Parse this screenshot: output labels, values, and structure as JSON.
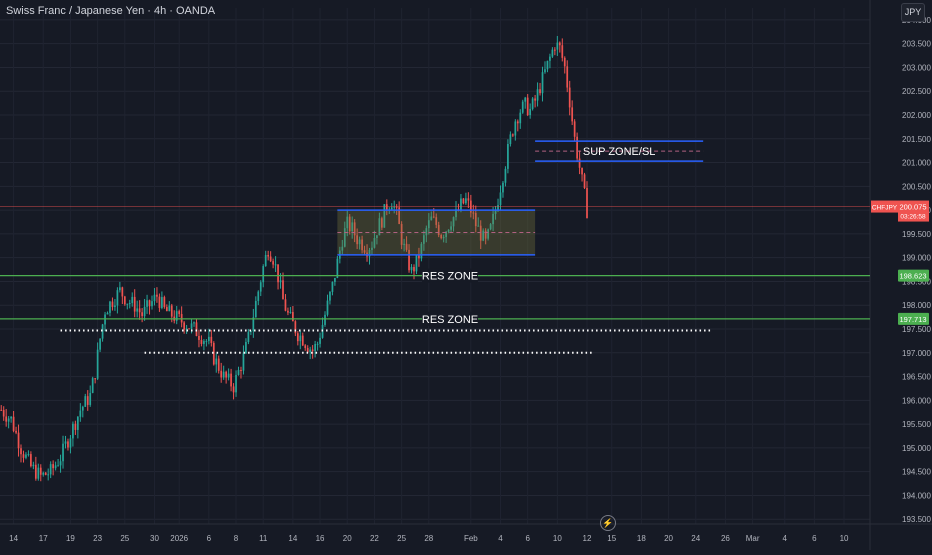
{
  "header": {
    "symbol_title": "Swiss Franc / Japanese Yen · 4h · OANDA",
    "currency_button": "JPY"
  },
  "colors": {
    "background": "#161a25",
    "up_candle": "#26a69a",
    "down_candle": "#ef5350",
    "green_line": "#4caf50",
    "zone_line": "#2962ff",
    "current_price_line": "#ef5350"
  },
  "icons": {
    "bottom_control": "lightning-bolt-icon"
  },
  "chart_data": {
    "type": "candlestick",
    "title": "Swiss Franc / Japanese Yen · 4h · OANDA",
    "xlabel": "",
    "ylabel": "",
    "ylim": [
      193.4,
      204.25
    ],
    "grid": true,
    "y_ticks": [
      "193.500",
      "194.000",
      "194.500",
      "195.000",
      "195.500",
      "196.000",
      "196.500",
      "197.000",
      "197.500",
      "198.000",
      "198.500",
      "199.000",
      "199.500",
      "200.000",
      "200.500",
      "201.000",
      "201.500",
      "202.000",
      "202.500",
      "203.000",
      "203.500",
      "204.000"
    ],
    "x_ticks": [
      "14",
      "17",
      "19",
      "23",
      "25",
      "30",
      "2026",
      "6",
      "8",
      "11",
      "14",
      "16",
      "20",
      "22",
      "25",
      "28",
      "Feb",
      "4",
      "6",
      "10",
      "12",
      "15",
      "18",
      "20",
      "24",
      "26",
      "Mar",
      "4",
      "6",
      "10"
    ],
    "close_path": [
      [
        0,
        195.8
      ],
      [
        4,
        195.6
      ],
      [
        8,
        195.0
      ],
      [
        12,
        194.6
      ],
      [
        16,
        194.4
      ],
      [
        20,
        194.5
      ],
      [
        24,
        194.8
      ],
      [
        28,
        195.3
      ],
      [
        32,
        195.8
      ],
      [
        36,
        196.1
      ],
      [
        38,
        196.6
      ],
      [
        40,
        197.3
      ],
      [
        42,
        197.9
      ],
      [
        45,
        198.1
      ],
      [
        48,
        198.3
      ],
      [
        51,
        198.1
      ],
      [
        54,
        198.0
      ],
      [
        57,
        197.8
      ],
      [
        60,
        198.0
      ],
      [
        63,
        198.2
      ],
      [
        66,
        197.9
      ],
      [
        69,
        197.8
      ],
      [
        72,
        197.7
      ],
      [
        75,
        197.6
      ],
      [
        78,
        197.5
      ],
      [
        80,
        197.4
      ],
      [
        82,
        197.3
      ],
      [
        84,
        197.2
      ],
      [
        86,
        196.9
      ],
      [
        88,
        196.7
      ],
      [
        90,
        196.5
      ],
      [
        92,
        196.4
      ],
      [
        94,
        196.3
      ],
      [
        96,
        196.6
      ],
      [
        98,
        196.9
      ],
      [
        100,
        197.3
      ],
      [
        102,
        197.8
      ],
      [
        104,
        198.3
      ],
      [
        106,
        198.8
      ],
      [
        108,
        199.2
      ],
      [
        110,
        199.0
      ],
      [
        112,
        198.6
      ],
      [
        114,
        198.1
      ],
      [
        116,
        197.8
      ],
      [
        118,
        197.6
      ],
      [
        120,
        197.4
      ],
      [
        122,
        197.3
      ],
      [
        124,
        197.15
      ],
      [
        126,
        197.05
      ],
      [
        128,
        197.2
      ],
      [
        130,
        197.6
      ],
      [
        132,
        198.0
      ],
      [
        134,
        198.4
      ],
      [
        136,
        198.9
      ],
      [
        138,
        199.4
      ],
      [
        140,
        199.7
      ],
      [
        142,
        199.6
      ],
      [
        144,
        199.4
      ],
      [
        146,
        199.3
      ],
      [
        148,
        199.2
      ],
      [
        150,
        199.3
      ],
      [
        152,
        199.6
      ],
      [
        154,
        199.8
      ],
      [
        156,
        200.1
      ],
      [
        158,
        200.2
      ],
      [
        160,
        199.9
      ],
      [
        162,
        199.4
      ],
      [
        164,
        199.0
      ],
      [
        166,
        198.7
      ],
      [
        168,
        198.9
      ],
      [
        170,
        199.2
      ],
      [
        172,
        199.6
      ],
      [
        174,
        199.8
      ],
      [
        176,
        199.7
      ],
      [
        178,
        199.5
      ],
      [
        180,
        199.6
      ],
      [
        182,
        199.8
      ],
      [
        184,
        199.9
      ],
      [
        186,
        200.1
      ],
      [
        188,
        200.2
      ],
      [
        190,
        200.0
      ],
      [
        192,
        199.7
      ],
      [
        194,
        199.5
      ],
      [
        196,
        199.3
      ],
      [
        198,
        199.6
      ],
      [
        200,
        200.0
      ],
      [
        202,
        200.5
      ],
      [
        204,
        201.0
      ],
      [
        206,
        201.5
      ],
      [
        208,
        201.9
      ],
      [
        210,
        202.1
      ],
      [
        212,
        202.2
      ],
      [
        214,
        202.1
      ],
      [
        216,
        202.3
      ],
      [
        218,
        202.6
      ],
      [
        220,
        202.9
      ],
      [
        222,
        203.2
      ],
      [
        224,
        203.5
      ],
      [
        226,
        203.4
      ],
      [
        228,
        203.0
      ],
      [
        230,
        202.3
      ],
      [
        232,
        201.5
      ],
      [
        234,
        200.9
      ],
      [
        236,
        200.3
      ],
      [
        237,
        200.0
      ]
    ],
    "last_bar_index": 237,
    "x_range_bars": [
      0,
      352
    ],
    "current_price": "200.075",
    "countdown": "03:26:58",
    "symbol_badge": "CHFJPY",
    "horizontal_levels": [
      {
        "label": "RES ZONE",
        "value": 198.623,
        "value_text": "198.623",
        "color": "#4caf50"
      },
      {
        "label": "RES ZONE",
        "value": 197.713,
        "value_text": "197.713",
        "color": "#4caf50"
      }
    ],
    "zones": [
      {
        "label": "",
        "top": 200.0,
        "bottom": 199.06,
        "mid": 199.53,
        "start_bar": 136,
        "end_bar": 216
      },
      {
        "label": "SUP ZONE/SL",
        "top": 201.45,
        "bottom": 201.03,
        "mid": 201.24,
        "start_bar": 216,
        "end_bar": 284
      }
    ],
    "dotted_levels": [
      {
        "value": 197.47,
        "start_bar": 24,
        "end_bar": 288
      },
      {
        "value": 197.0,
        "start_bar": 58,
        "end_bar": 240
      }
    ]
  }
}
